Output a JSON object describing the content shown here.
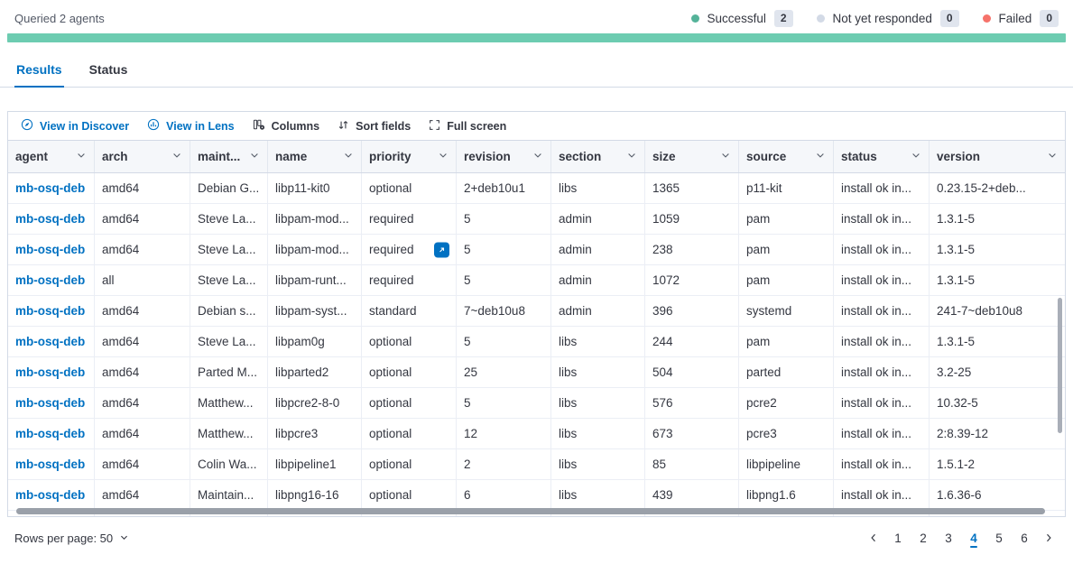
{
  "query_status": {
    "queried_text": "Queried 2 agents",
    "legend": [
      {
        "label": "Successful",
        "count": "2",
        "color": "#54b399"
      },
      {
        "label": "Not yet responded",
        "count": "0",
        "color": "#d3dae6"
      },
      {
        "label": "Failed",
        "count": "0",
        "color": "#f6726a"
      }
    ],
    "progress_color": "#6dccb1"
  },
  "tabs": [
    {
      "label": "Results",
      "active": true
    },
    {
      "label": "Status",
      "active": false
    }
  ],
  "toolbar": {
    "view_in_discover": "View in Discover",
    "view_in_lens": "View in Lens",
    "columns": "Columns",
    "sort_fields": "Sort fields",
    "full_screen": "Full screen"
  },
  "grid": {
    "columns": [
      {
        "id": "agent",
        "label": "agent",
        "width": 96
      },
      {
        "id": "arch",
        "label": "arch",
        "width": 106
      },
      {
        "id": "maintainer",
        "label": "maint...",
        "width": 86
      },
      {
        "id": "name",
        "label": "name",
        "width": 104
      },
      {
        "id": "priority",
        "label": "priority",
        "width": 105
      },
      {
        "id": "revision",
        "label": "revision",
        "width": 105
      },
      {
        "id": "section",
        "label": "section",
        "width": 104
      },
      {
        "id": "size",
        "label": "size",
        "width": 104
      },
      {
        "id": "source",
        "label": "source",
        "width": 105
      },
      {
        "id": "status",
        "label": "status",
        "width": 106
      },
      {
        "id": "version",
        "label": "version",
        "width": 152
      }
    ],
    "rows": [
      [
        "mb-osq-deb",
        "amd64",
        "Debian G...",
        "libp11-kit0",
        "optional",
        "2+deb10u1",
        "libs",
        "1365",
        "p11-kit",
        "install ok in...",
        "0.23.15-2+deb..."
      ],
      [
        "mb-osq-deb",
        "amd64",
        "Steve La...",
        "libpam-mod...",
        "required",
        "5",
        "admin",
        "1059",
        "pam",
        "install ok in...",
        "1.3.1-5"
      ],
      [
        "mb-osq-deb",
        "amd64",
        "Steve La...",
        "libpam-mod...",
        "required",
        "5",
        "admin",
        "238",
        "pam",
        "install ok in...",
        "1.3.1-5"
      ],
      [
        "mb-osq-deb",
        "all",
        "Steve La...",
        "libpam-runt...",
        "required",
        "5",
        "admin",
        "1072",
        "pam",
        "install ok in...",
        "1.3.1-5"
      ],
      [
        "mb-osq-deb",
        "amd64",
        "Debian s...",
        "libpam-syst...",
        "standard",
        "7~deb10u8",
        "admin",
        "396",
        "systemd",
        "install ok in...",
        "241-7~deb10u8"
      ],
      [
        "mb-osq-deb",
        "amd64",
        "Steve La...",
        "libpam0g",
        "optional",
        "5",
        "libs",
        "244",
        "pam",
        "install ok in...",
        "1.3.1-5"
      ],
      [
        "mb-osq-deb",
        "amd64",
        "Parted M...",
        "libparted2",
        "optional",
        "25",
        "libs",
        "504",
        "parted",
        "install ok in...",
        "3.2-25"
      ],
      [
        "mb-osq-deb",
        "amd64",
        "Matthew...",
        "libpcre2-8-0",
        "optional",
        "5",
        "libs",
        "576",
        "pcre2",
        "install ok in...",
        "10.32-5"
      ],
      [
        "mb-osq-deb",
        "amd64",
        "Matthew...",
        "libpcre3",
        "optional",
        "12",
        "libs",
        "673",
        "pcre3",
        "install ok in...",
        "2:8.39-12"
      ],
      [
        "mb-osq-deb",
        "amd64",
        "Colin Wa...",
        "libpipeline1",
        "optional",
        "2",
        "libs",
        "85",
        "libpipeline",
        "install ok in...",
        "1.5.1-2"
      ],
      [
        "mb-osq-deb",
        "amd64",
        "Maintain...",
        "libpng16-16",
        "optional",
        "6",
        "libs",
        "439",
        "libpng1.6",
        "install ok in...",
        "1.6.36-6"
      ]
    ],
    "expand_cell": {
      "row_index": 2,
      "column_id": "priority"
    }
  },
  "footer": {
    "rows_per_page_label": "Rows per page: 50",
    "pages": [
      "1",
      "2",
      "3",
      "4",
      "5",
      "6"
    ],
    "active_page": "4"
  },
  "colors": {
    "accent_blue": "#0071c2",
    "success_green": "#54b399",
    "pending_gray": "#d3dae6",
    "failed_coral": "#f6726a",
    "progress_green": "#6dccb1",
    "header_bg": "#f5f7fa",
    "border": "#d3dae6"
  }
}
